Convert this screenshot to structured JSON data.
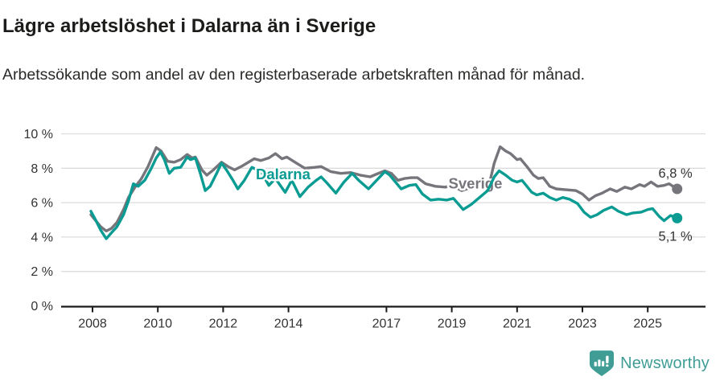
{
  "header": {
    "title": "Lägre arbetslöshet i Dalarna än i Sverige",
    "subtitle": "Arbetssökande som andel av den registerbaserade arbetskraften månad för månad."
  },
  "chart_data": {
    "type": "line",
    "title": "Lägre arbetslöshet i Dalarna än i Sverige",
    "subtitle": "Arbetssökande som andel av den registerbaserade arbetskraften månad för månad.",
    "unit": "%",
    "ylim": [
      0,
      10
    ],
    "grid": "horizontal",
    "legend_position": "inline-labels",
    "yticks": [
      {
        "value": 0,
        "label": "0 %"
      },
      {
        "value": 2,
        "label": "2 %"
      },
      {
        "value": 4,
        "label": "4 %"
      },
      {
        "value": 6,
        "label": "6 %"
      },
      {
        "value": 8,
        "label": "8 %"
      },
      {
        "value": 10,
        "label": "10 %"
      }
    ],
    "xticks": [
      {
        "value": 2008,
        "label": "2008"
      },
      {
        "value": 2010,
        "label": "2010"
      },
      {
        "value": 2012,
        "label": "2012"
      },
      {
        "value": 2014,
        "label": "2014"
      },
      {
        "value": 2017,
        "label": "2017"
      },
      {
        "value": 2019,
        "label": "2019"
      },
      {
        "value": 2021,
        "label": "2021"
      },
      {
        "value": 2023,
        "label": "2023"
      },
      {
        "value": 2025,
        "label": "2025"
      }
    ],
    "series": [
      {
        "name": "Sverige",
        "color": "#75757b",
        "end_label": "6,8 %",
        "end_label_side": "above",
        "label_pos": {
          "year": 2018.9,
          "value": 7.1
        },
        "points": [
          [
            2007.95,
            5.3
          ],
          [
            2008.08,
            5.0
          ],
          [
            2008.25,
            4.6
          ],
          [
            2008.42,
            4.35
          ],
          [
            2008.58,
            4.5
          ],
          [
            2008.75,
            4.85
          ],
          [
            2008.95,
            5.6
          ],
          [
            2009.1,
            6.3
          ],
          [
            2009.3,
            6.9
          ],
          [
            2009.5,
            7.4
          ],
          [
            2009.7,
            8.1
          ],
          [
            2009.95,
            9.2
          ],
          [
            2010.1,
            9.0
          ],
          [
            2010.3,
            8.4
          ],
          [
            2010.5,
            8.35
          ],
          [
            2010.7,
            8.5
          ],
          [
            2010.9,
            8.8
          ],
          [
            2011.05,
            8.6
          ],
          [
            2011.15,
            8.65
          ],
          [
            2011.35,
            7.9
          ],
          [
            2011.5,
            7.6
          ],
          [
            2011.7,
            7.9
          ],
          [
            2011.95,
            8.35
          ],
          [
            2012.15,
            8.1
          ],
          [
            2012.35,
            7.9
          ],
          [
            2012.6,
            8.15
          ],
          [
            2012.95,
            8.55
          ],
          [
            2013.15,
            8.45
          ],
          [
            2013.4,
            8.6
          ],
          [
            2013.6,
            8.85
          ],
          [
            2013.8,
            8.55
          ],
          [
            2013.95,
            8.65
          ],
          [
            2014.2,
            8.35
          ],
          [
            2014.5,
            8.0
          ],
          [
            2014.8,
            8.05
          ],
          [
            2015.0,
            8.1
          ],
          [
            2015.3,
            7.8
          ],
          [
            2015.6,
            7.7
          ],
          [
            2015.9,
            7.75
          ],
          [
            2016.2,
            7.6
          ],
          [
            2016.5,
            7.5
          ],
          [
            2016.75,
            7.7
          ],
          [
            2016.95,
            7.85
          ],
          [
            2017.15,
            7.7
          ],
          [
            2017.35,
            7.3
          ],
          [
            2017.55,
            7.4
          ],
          [
            2017.75,
            7.45
          ],
          [
            2017.95,
            7.45
          ],
          [
            2018.2,
            7.1
          ],
          [
            2018.5,
            6.95
          ],
          [
            2018.8,
            6.9
          ],
          [
            2019.0,
            7.0
          ],
          [
            2019.3,
            6.7
          ],
          [
            2019.55,
            6.85
          ],
          [
            2019.8,
            6.9
          ],
          [
            2020.0,
            7.0
          ],
          [
            2020.15,
            7.1
          ],
          [
            2020.3,
            8.3
          ],
          [
            2020.48,
            9.25
          ],
          [
            2020.65,
            9.0
          ],
          [
            2020.8,
            8.85
          ],
          [
            2021.0,
            8.5
          ],
          [
            2021.1,
            8.55
          ],
          [
            2021.3,
            8.1
          ],
          [
            2021.5,
            7.6
          ],
          [
            2021.65,
            7.4
          ],
          [
            2021.8,
            7.45
          ],
          [
            2022.0,
            6.95
          ],
          [
            2022.2,
            6.8
          ],
          [
            2022.5,
            6.75
          ],
          [
            2022.8,
            6.7
          ],
          [
            2023.0,
            6.5
          ],
          [
            2023.2,
            6.15
          ],
          [
            2023.4,
            6.4
          ],
          [
            2023.6,
            6.55
          ],
          [
            2023.85,
            6.8
          ],
          [
            2024.05,
            6.65
          ],
          [
            2024.3,
            6.9
          ],
          [
            2024.5,
            6.8
          ],
          [
            2024.75,
            7.05
          ],
          [
            2024.9,
            6.95
          ],
          [
            2025.1,
            7.2
          ],
          [
            2025.3,
            6.95
          ],
          [
            2025.5,
            7.0
          ],
          [
            2025.65,
            7.1
          ],
          [
            2025.9,
            6.8
          ]
        ]
      },
      {
        "name": "Dalarna",
        "color": "#0a9c93",
        "end_label": "5,1 %",
        "end_label_side": "below",
        "label_pos": {
          "year": 2013.0,
          "value": 7.65
        },
        "points": [
          [
            2007.95,
            5.5
          ],
          [
            2008.08,
            5.05
          ],
          [
            2008.25,
            4.4
          ],
          [
            2008.42,
            3.9
          ],
          [
            2008.58,
            4.25
          ],
          [
            2008.75,
            4.6
          ],
          [
            2008.95,
            5.3
          ],
          [
            2009.1,
            6.1
          ],
          [
            2009.25,
            7.1
          ],
          [
            2009.4,
            6.95
          ],
          [
            2009.6,
            7.3
          ],
          [
            2009.8,
            8.0
          ],
          [
            2009.95,
            8.6
          ],
          [
            2010.08,
            8.95
          ],
          [
            2010.2,
            8.5
          ],
          [
            2010.35,
            7.7
          ],
          [
            2010.5,
            8.0
          ],
          [
            2010.7,
            8.05
          ],
          [
            2010.9,
            8.65
          ],
          [
            2011.0,
            8.5
          ],
          [
            2011.15,
            8.6
          ],
          [
            2011.3,
            7.7
          ],
          [
            2011.45,
            6.7
          ],
          [
            2011.6,
            6.95
          ],
          [
            2011.8,
            7.7
          ],
          [
            2011.95,
            8.3
          ],
          [
            2012.1,
            7.9
          ],
          [
            2012.3,
            7.3
          ],
          [
            2012.45,
            6.8
          ],
          [
            2012.65,
            7.3
          ],
          [
            2012.88,
            8.05
          ],
          [
            2013.0,
            7.95
          ],
          [
            2013.15,
            7.85
          ],
          [
            2013.4,
            7.0
          ],
          [
            2013.6,
            7.4
          ],
          [
            2013.9,
            6.6
          ],
          [
            2014.1,
            7.3
          ],
          [
            2014.35,
            6.35
          ],
          [
            2014.6,
            6.9
          ],
          [
            2014.85,
            7.3
          ],
          [
            2015.0,
            7.5
          ],
          [
            2015.2,
            7.1
          ],
          [
            2015.45,
            6.55
          ],
          [
            2015.7,
            7.2
          ],
          [
            2015.95,
            7.7
          ],
          [
            2016.15,
            7.3
          ],
          [
            2016.45,
            6.8
          ],
          [
            2016.7,
            7.3
          ],
          [
            2016.95,
            7.8
          ],
          [
            2017.1,
            7.6
          ],
          [
            2017.45,
            6.8
          ],
          [
            2017.7,
            7.0
          ],
          [
            2017.9,
            7.05
          ],
          [
            2018.1,
            6.5
          ],
          [
            2018.35,
            6.15
          ],
          [
            2018.6,
            6.2
          ],
          [
            2018.85,
            6.15
          ],
          [
            2019.05,
            6.25
          ],
          [
            2019.35,
            5.6
          ],
          [
            2019.6,
            5.9
          ],
          [
            2019.85,
            6.3
          ],
          [
            2020.1,
            6.7
          ],
          [
            2020.3,
            7.5
          ],
          [
            2020.45,
            7.85
          ],
          [
            2020.65,
            7.6
          ],
          [
            2020.85,
            7.3
          ],
          [
            2021.0,
            7.2
          ],
          [
            2021.15,
            7.3
          ],
          [
            2021.45,
            6.6
          ],
          [
            2021.6,
            6.45
          ],
          [
            2021.8,
            6.55
          ],
          [
            2022.0,
            6.3
          ],
          [
            2022.2,
            6.15
          ],
          [
            2022.4,
            6.3
          ],
          [
            2022.6,
            6.2
          ],
          [
            2022.85,
            5.95
          ],
          [
            2023.05,
            5.45
          ],
          [
            2023.25,
            5.15
          ],
          [
            2023.45,
            5.3
          ],
          [
            2023.65,
            5.55
          ],
          [
            2023.9,
            5.75
          ],
          [
            2024.1,
            5.5
          ],
          [
            2024.35,
            5.3
          ],
          [
            2024.55,
            5.4
          ],
          [
            2024.8,
            5.45
          ],
          [
            2025.0,
            5.6
          ],
          [
            2025.15,
            5.65
          ],
          [
            2025.35,
            5.2
          ],
          [
            2025.5,
            4.95
          ],
          [
            2025.7,
            5.25
          ],
          [
            2025.9,
            5.1
          ]
        ]
      }
    ],
    "colors": {
      "grid": "#dcdcdc",
      "axis": "#1a1a1a",
      "tick_text": "#333333",
      "value_text": "#333333"
    }
  },
  "footer": {
    "brand": "Newsworthy",
    "brand_color": "#3f9d96",
    "logo_icon": "bar-chart-speech-bubble-icon"
  }
}
